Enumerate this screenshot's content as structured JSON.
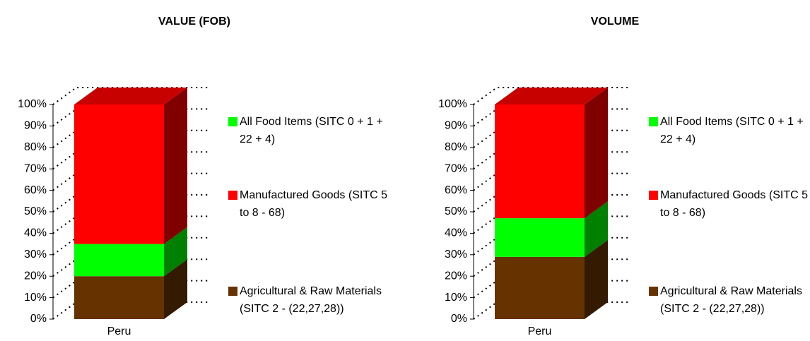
{
  "chart_data": [
    {
      "type": "bar",
      "title": "VALUE (FOB)",
      "categories": [
        "Peru"
      ],
      "series": [
        {
          "name": "Agricultural & Raw Materials (SITC 2 - (22,27,28))",
          "color": "#663300",
          "values": [
            20
          ]
        },
        {
          "name": "All Food Items (SITC 0 + 1 + 22 + 4)",
          "color": "#00ff00",
          "values": [
            15
          ]
        },
        {
          "name": "Manufactured Goods (SITC 5 to 8 - 68)",
          "color": "#ff0000",
          "values": [
            65
          ]
        }
      ],
      "ylim": [
        0,
        100
      ],
      "yticks": [
        {
          "value": 0,
          "label": "0%"
        },
        {
          "value": 10,
          "label": "10%"
        },
        {
          "value": 20,
          "label": "20%"
        },
        {
          "value": 30,
          "label": "30%"
        },
        {
          "value": 40,
          "label": "40%"
        },
        {
          "value": 50,
          "label": "50%"
        },
        {
          "value": 60,
          "label": "60%"
        },
        {
          "value": 70,
          "label": "70%"
        },
        {
          "value": 80,
          "label": "80%"
        },
        {
          "value": 90,
          "label": "90%"
        },
        {
          "value": 100,
          "label": "100%"
        }
      ],
      "grid": true,
      "legend": "right"
    },
    {
      "type": "bar",
      "title": "VOLUME",
      "categories": [
        "Peru"
      ],
      "series": [
        {
          "name": "Agricultural & Raw Materials (SITC 2 - (22,27,28))",
          "color": "#663300",
          "values": [
            29
          ]
        },
        {
          "name": "All Food Items (SITC 0 + 1 + 22 + 4)",
          "color": "#00ff00",
          "values": [
            18
          ]
        },
        {
          "name": "Manufactured Goods (SITC 5 to 8 - 68)",
          "color": "#ff0000",
          "values": [
            53
          ]
        }
      ],
      "ylim": [
        0,
        100
      ],
      "yticks": [
        {
          "value": 0,
          "label": "0%"
        },
        {
          "value": 10,
          "label": "10%"
        },
        {
          "value": 20,
          "label": "20%"
        },
        {
          "value": 30,
          "label": "30%"
        },
        {
          "value": 40,
          "label": "40%"
        },
        {
          "value": 50,
          "label": "50%"
        },
        {
          "value": 60,
          "label": "60%"
        },
        {
          "value": 70,
          "label": "70%"
        },
        {
          "value": 80,
          "label": "80%"
        },
        {
          "value": 90,
          "label": "90%"
        },
        {
          "value": 100,
          "label": "100%"
        }
      ],
      "grid": true,
      "legend": "right"
    }
  ]
}
